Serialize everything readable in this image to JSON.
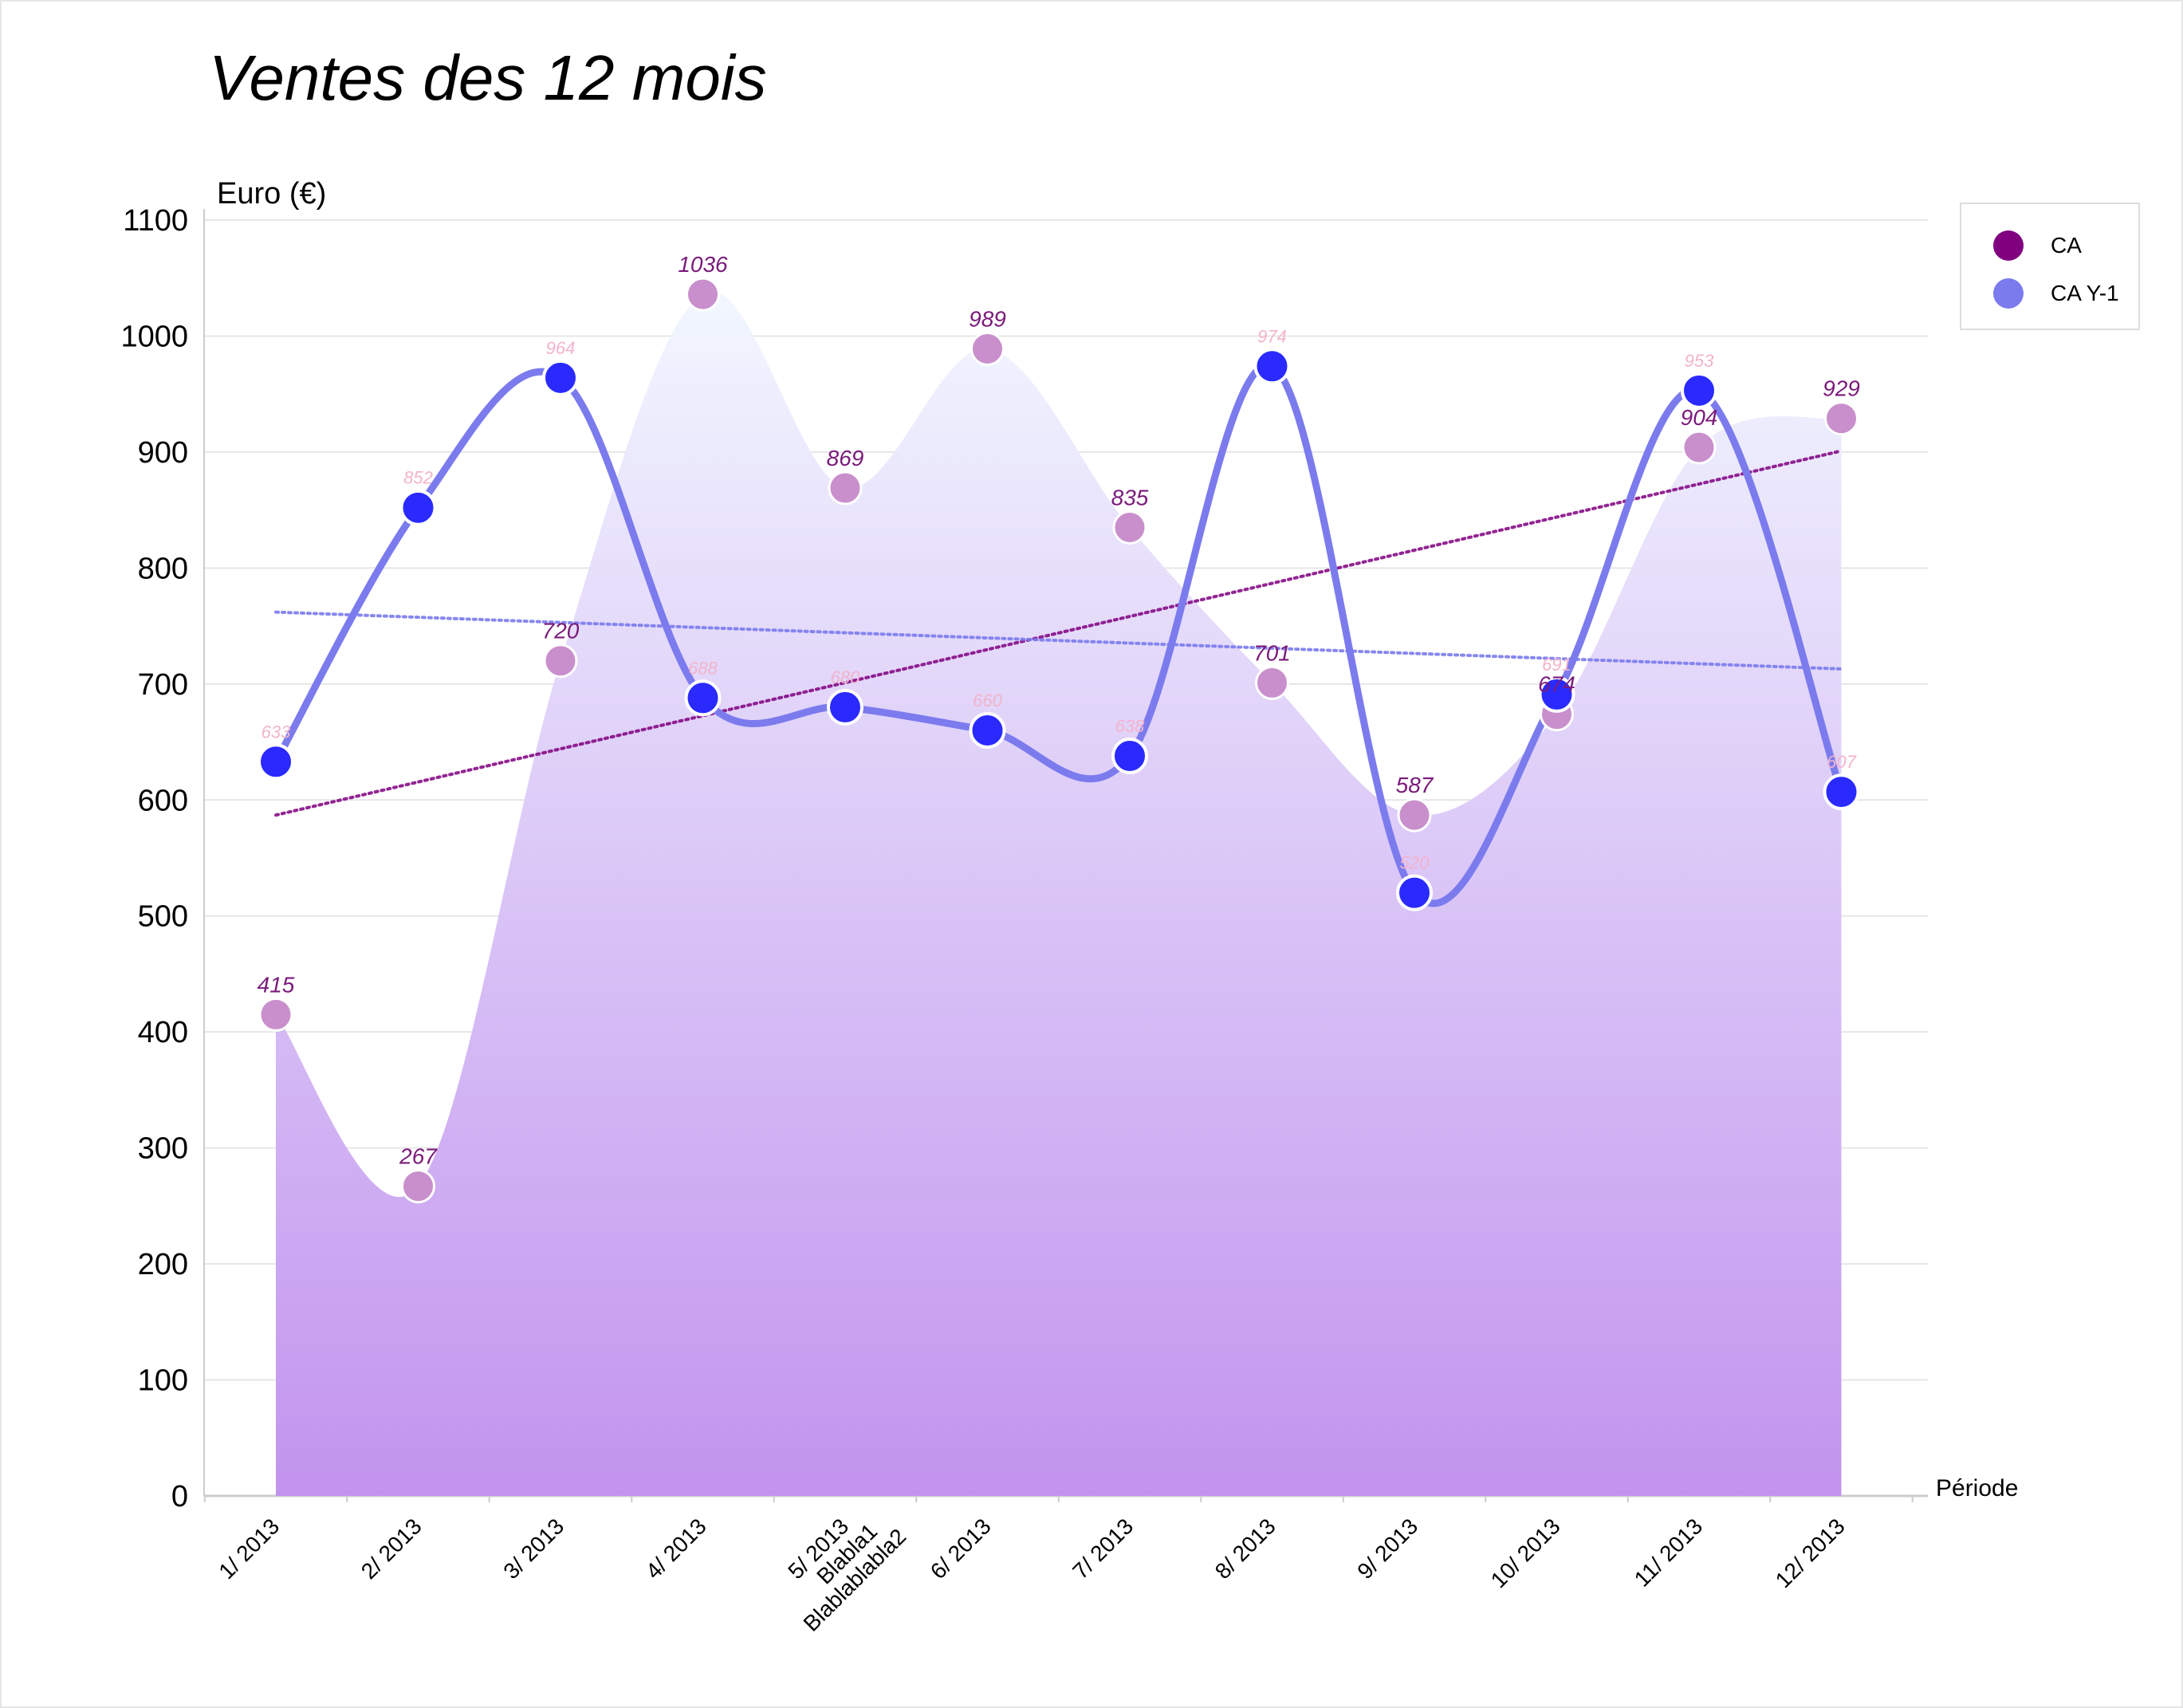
{
  "chart_data": {
    "type": "line",
    "title": "Ventes des 12 mois",
    "ylabel": "Euro (€)",
    "xlabel": "Période",
    "ylim": [
      0,
      1100
    ],
    "yticks": [
      0,
      100,
      200,
      300,
      400,
      500,
      600,
      700,
      800,
      900,
      1000,
      1100
    ],
    "grid": true,
    "legend_position": "top-right",
    "categories": [
      [
        "1/ 2013"
      ],
      [
        "2/ 2013"
      ],
      [
        "3/ 2013"
      ],
      [
        "4/ 2013"
      ],
      [
        "5/ 2013",
        "Blabla1",
        "Blablablabla2"
      ],
      [
        "6/ 2013"
      ],
      [
        "7/ 2013"
      ],
      [
        "8/ 2013"
      ],
      [
        "9/ 2013"
      ],
      [
        "10/ 2013"
      ],
      [
        "11/ 2013"
      ],
      [
        "12/ 2013"
      ]
    ],
    "series": [
      {
        "name": "CA",
        "type": "area",
        "color": "#800080",
        "fill_top_color": "#f2f7ff",
        "fill_bottom_color": "#c293ee",
        "marker_color": "#c98fcc",
        "label_color": "#7a1a7a",
        "values": [
          415,
          267,
          720,
          1036,
          869,
          989,
          835,
          701,
          587,
          674,
          904,
          929
        ],
        "labels": [
          "415",
          "267",
          "720",
          "1036",
          "869",
          "989",
          "835",
          "701",
          "587",
          "674",
          "904",
          "929"
        ],
        "trendline": {
          "start": 587,
          "end": 901,
          "color": "#800080"
        }
      },
      {
        "name": "CA Y-1",
        "type": "spline",
        "color": "#7b7bee",
        "marker_color": "#2a2aff",
        "label_color": "#f2b3cc",
        "values": [
          633,
          852,
          964,
          688,
          680,
          660,
          638,
          974,
          520,
          691,
          953,
          607
        ],
        "labels": [
          "633",
          "852",
          "964",
          "688",
          "680",
          "660",
          "638",
          "974",
          "520",
          "691",
          "953",
          "607"
        ],
        "trendline": {
          "start": 762,
          "end": 713,
          "color": "#7b7bee"
        }
      }
    ]
  }
}
